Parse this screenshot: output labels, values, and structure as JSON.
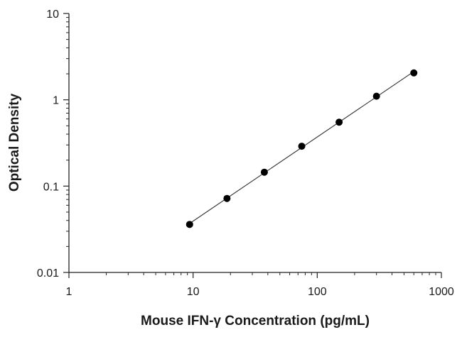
{
  "chart_data": {
    "type": "scatter",
    "title": "",
    "xlabel": "Mouse IFN-γ Concentration (pg/mL)",
    "ylabel": "Optical Density",
    "x_scale": "log",
    "y_scale": "log",
    "xlim": [
      1,
      1000
    ],
    "ylim": [
      0.01,
      10
    ],
    "x_tick_labels": [
      "1",
      "10",
      "100",
      "1000"
    ],
    "y_tick_labels": [
      "0.01",
      "0.1",
      "1",
      "10"
    ],
    "grid": false,
    "legend": "none",
    "series": [
      {
        "x": [
          9.375,
          18.75,
          37.5,
          75,
          150,
          300,
          600
        ],
        "y": [
          0.036,
          0.072,
          0.145,
          0.29,
          0.55,
          1.1,
          2.05
        ],
        "marker": "filled-circle",
        "fit_line": true,
        "color": "#000000"
      }
    ]
  }
}
